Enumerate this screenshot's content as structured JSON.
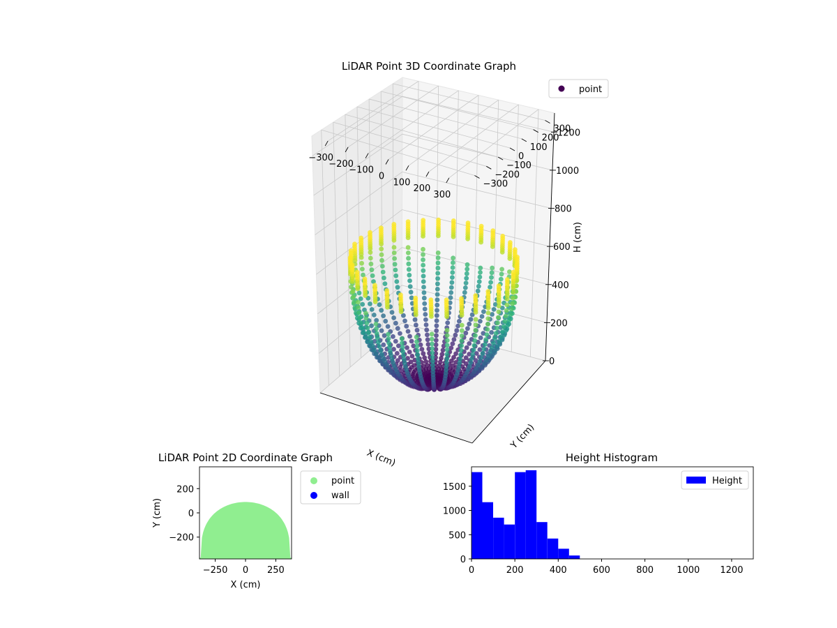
{
  "figure": {
    "background": "#ffffff"
  },
  "chart_data": [
    {
      "type": "scatter",
      "projection": "3d",
      "title": "LiDAR Point 3D Coordinate Graph",
      "xlabel": "X (cm)",
      "ylabel": "Y (cm)",
      "zlabel": "H (cm)",
      "xlim": [
        -380,
        380
      ],
      "ylim": [
        -380,
        380
      ],
      "zlim": [
        1300,
        0
      ],
      "xticks": [
        "−300",
        "−200",
        "−100",
        "0",
        "100",
        "200",
        "300"
      ],
      "yticks": [
        "−300",
        "−200",
        "−100",
        "0",
        "100",
        "200",
        "300"
      ],
      "zticks": [
        "0",
        "200",
        "400",
        "600",
        "800",
        "1000",
        "1200"
      ],
      "colormap": "viridis",
      "color_by": "height",
      "shape": "dome",
      "dome_radius": 370,
      "dome_peak_height": 0,
      "dome_base_height": 540,
      "wall_column_count": 34,
      "legend": {
        "entries": [
          {
            "label": "point",
            "color": "#440154",
            "marker": "circle"
          }
        ],
        "placement": "upper-right"
      },
      "grid": true
    },
    {
      "type": "scatter",
      "title": "LiDAR Point 2D Coordinate Graph",
      "xlabel": "X (cm)",
      "ylabel": "Y (cm)",
      "xlim": [
        -380,
        380
      ],
      "ylim": [
        -380,
        380
      ],
      "xticks": [
        "−250",
        "0",
        "250"
      ],
      "yticks": [
        "−200",
        "0",
        "200"
      ],
      "series": [
        {
          "name": "point",
          "color": "#90ee90",
          "region": "half-disc",
          "boundary_radius": 370,
          "flat_top_y": 90
        },
        {
          "name": "wall",
          "color": "#0000ff",
          "count": 0
        }
      ],
      "legend": {
        "placement": "outside-right"
      },
      "grid": false
    },
    {
      "type": "bar",
      "subtype": "histogram",
      "title": "Height Histogram",
      "series": [
        {
          "name": "Height",
          "color": "#0000ff"
        }
      ],
      "bin_width": 50,
      "bins": [
        {
          "start": 0,
          "count": 1790
        },
        {
          "start": 50,
          "count": 1170
        },
        {
          "start": 100,
          "count": 850
        },
        {
          "start": 150,
          "count": 710
        },
        {
          "start": 200,
          "count": 1790
        },
        {
          "start": 250,
          "count": 1830
        },
        {
          "start": 300,
          "count": 760
        },
        {
          "start": 350,
          "count": 420
        },
        {
          "start": 400,
          "count": 210
        },
        {
          "start": 450,
          "count": 70
        }
      ],
      "xlim": [
        0,
        1300
      ],
      "ylim": [
        0,
        1900
      ],
      "xticks": [
        "0",
        "200",
        "400",
        "600",
        "800",
        "1000",
        "1200"
      ],
      "yticks": [
        "0",
        "500",
        "1000",
        "1500"
      ],
      "legend": {
        "placement": "upper-right"
      },
      "grid": false
    }
  ]
}
